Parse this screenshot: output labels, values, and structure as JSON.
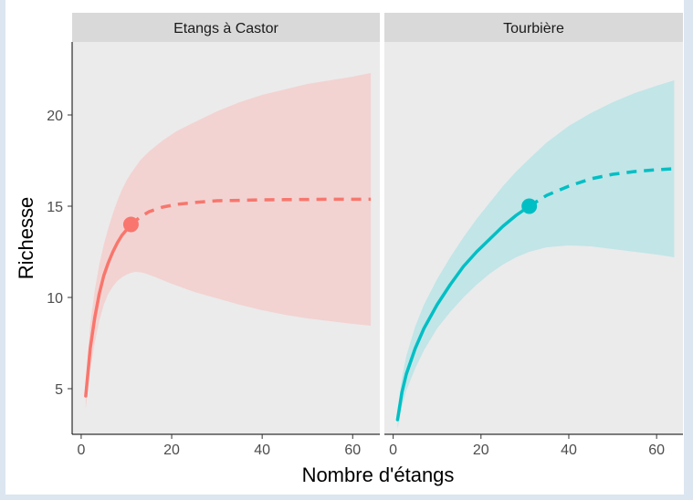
{
  "chart_data": {
    "type": "line",
    "xlabel": "Nombre d'étangs",
    "ylabel": "Richesse",
    "xlim": [
      -2,
      66
    ],
    "ylim": [
      2.5,
      24
    ],
    "x_ticks": [
      0,
      20,
      40,
      60
    ],
    "y_ticks": [
      5,
      10,
      15,
      20
    ],
    "grid": false,
    "panels": [
      {
        "name": "Etangs à Castor",
        "color": "#F8766D",
        "band_color": "#F2D3D2",
        "observed_point": {
          "x": 11,
          "y": 14.0
        },
        "interpolated": {
          "x": [
            1,
            2,
            3,
            4,
            5,
            6,
            7,
            8,
            9,
            10,
            11
          ],
          "y": [
            4.6,
            7.2,
            8.9,
            10.2,
            11.2,
            11.9,
            12.5,
            13.0,
            13.4,
            13.7,
            14.0
          ]
        },
        "extrapolated": {
          "x": [
            11,
            13,
            15,
            18,
            21,
            25,
            30,
            35,
            40,
            45,
            50,
            55,
            60,
            64
          ],
          "y": [
            14.0,
            14.4,
            14.7,
            14.95,
            15.1,
            15.2,
            15.3,
            15.32,
            15.35,
            15.36,
            15.37,
            15.38,
            15.38,
            15.38
          ]
        },
        "ci_lower": {
          "x": [
            1,
            2,
            3,
            4,
            5,
            6,
            7,
            8,
            9,
            10,
            11,
            12,
            13,
            14,
            16,
            20,
            25,
            30,
            35,
            40,
            45,
            50,
            55,
            60,
            64
          ],
          "y": [
            3.9,
            6.0,
            7.5,
            8.7,
            9.6,
            10.2,
            10.6,
            10.9,
            11.1,
            11.25,
            11.35,
            11.4,
            11.38,
            11.33,
            11.15,
            10.75,
            10.3,
            9.95,
            9.6,
            9.3,
            9.05,
            8.85,
            8.7,
            8.55,
            8.45
          ]
        },
        "ci_upper": {
          "x": [
            1,
            2,
            3,
            4,
            5,
            6,
            7,
            8,
            9,
            10,
            11,
            13,
            15,
            18,
            21,
            25,
            30,
            35,
            40,
            45,
            50,
            55,
            60,
            64
          ],
          "y": [
            5.3,
            8.5,
            10.4,
            11.8,
            12.9,
            13.8,
            14.6,
            15.3,
            15.9,
            16.4,
            16.8,
            17.5,
            18.0,
            18.6,
            19.1,
            19.6,
            20.2,
            20.7,
            21.1,
            21.4,
            21.7,
            21.9,
            22.1,
            22.3
          ]
        }
      },
      {
        "name": "Tourbière",
        "color": "#00BFC4",
        "band_color": "#C2E5E7",
        "observed_point": {
          "x": 31,
          "y": 15.0
        },
        "interpolated": {
          "x": [
            1,
            2,
            3,
            5,
            7,
            10,
            13,
            16,
            19,
            22,
            25,
            28,
            31
          ],
          "y": [
            3.3,
            4.8,
            5.8,
            7.2,
            8.3,
            9.6,
            10.7,
            11.7,
            12.5,
            13.2,
            13.9,
            14.5,
            15.0
          ]
        },
        "extrapolated": {
          "x": [
            31,
            35,
            40,
            45,
            50,
            55,
            60,
            64
          ],
          "y": [
            15.0,
            15.6,
            16.1,
            16.5,
            16.75,
            16.9,
            17.0,
            17.05
          ]
        },
        "ci_lower": {
          "x": [
            1,
            2,
            3,
            5,
            7,
            10,
            13,
            16,
            19,
            22,
            25,
            28,
            31,
            35,
            40,
            45,
            50,
            55,
            60,
            64
          ],
          "y": [
            2.8,
            4.0,
            4.9,
            6.1,
            7.1,
            8.3,
            9.2,
            10.0,
            10.7,
            11.3,
            11.8,
            12.2,
            12.5,
            12.75,
            12.85,
            12.8,
            12.65,
            12.5,
            12.35,
            12.2
          ]
        },
        "ci_upper": {
          "x": [
            1,
            2,
            3,
            5,
            7,
            10,
            13,
            16,
            19,
            22,
            25,
            28,
            31,
            35,
            40,
            45,
            50,
            55,
            60,
            64
          ],
          "y": [
            3.8,
            5.6,
            6.8,
            8.4,
            9.6,
            11.0,
            12.2,
            13.3,
            14.3,
            15.2,
            16.1,
            16.9,
            17.6,
            18.5,
            19.4,
            20.1,
            20.7,
            21.2,
            21.6,
            21.9
          ]
        }
      }
    ]
  }
}
